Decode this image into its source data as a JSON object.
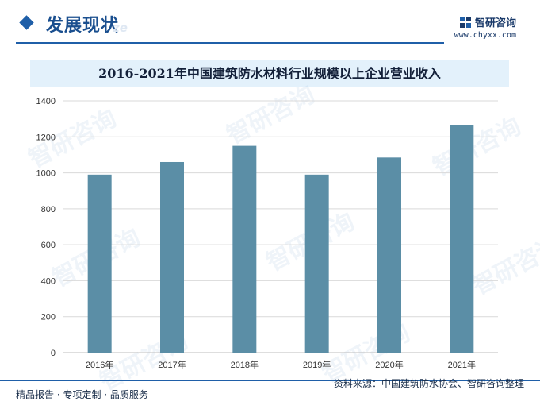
{
  "header": {
    "section_title": "发展现状",
    "watermark": "ze",
    "brand_name": "智研咨询",
    "brand_url": "www.chyxx.com"
  },
  "colors": {
    "accent": "#1f5fa8",
    "bar": "#5b8ea6",
    "title_band": "#e3f1fb"
  },
  "watermark_text": "智研咨询",
  "chart_data": {
    "type": "bar",
    "title": "2016-2021年中国建筑防水材料行业规模以上企业营业收入",
    "categories": [
      "2016年",
      "2017年",
      "2018年",
      "2019年",
      "2020年",
      "2021年"
    ],
    "values": [
      990,
      1060,
      1150,
      990,
      1085,
      1265
    ],
    "ylim": [
      0,
      1400
    ],
    "yticks": [
      0,
      200,
      400,
      600,
      800,
      1000,
      1200,
      1400
    ],
    "xlabel": "",
    "ylabel": "",
    "grid": true
  },
  "footer": {
    "left": "精品报告 · 专项定制 · 品质服务",
    "source": "资料来源：中国建筑防水协会、智研咨询整理"
  }
}
